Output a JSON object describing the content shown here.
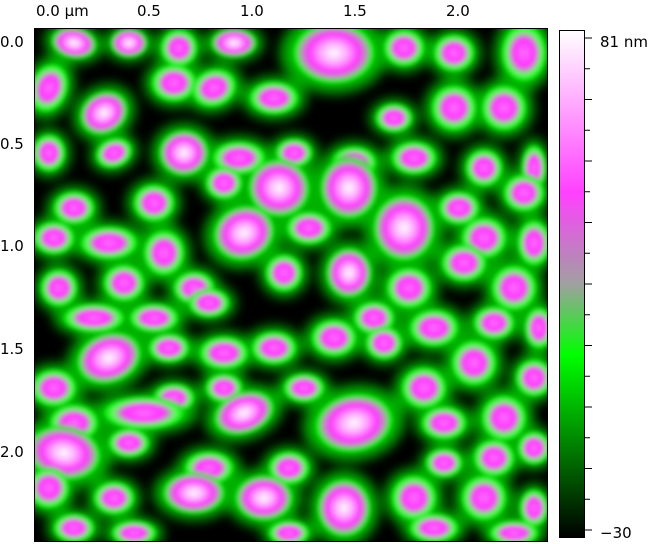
{
  "image": {
    "x_axis_ticks": [
      "0.0 µm",
      "0.5",
      "1.0",
      "1.5",
      "2.0"
    ],
    "y_axis_ticks": [
      "0.0",
      "0.5",
      "1.0",
      "1.5",
      "2.0"
    ],
    "colorbar": {
      "max_label": "81 nm",
      "min_label": "−30",
      "colors": [
        "#ffffff",
        "#ff40ff",
        "#a0a0a0",
        "#00ff00",
        "#000000"
      ]
    }
  }
}
